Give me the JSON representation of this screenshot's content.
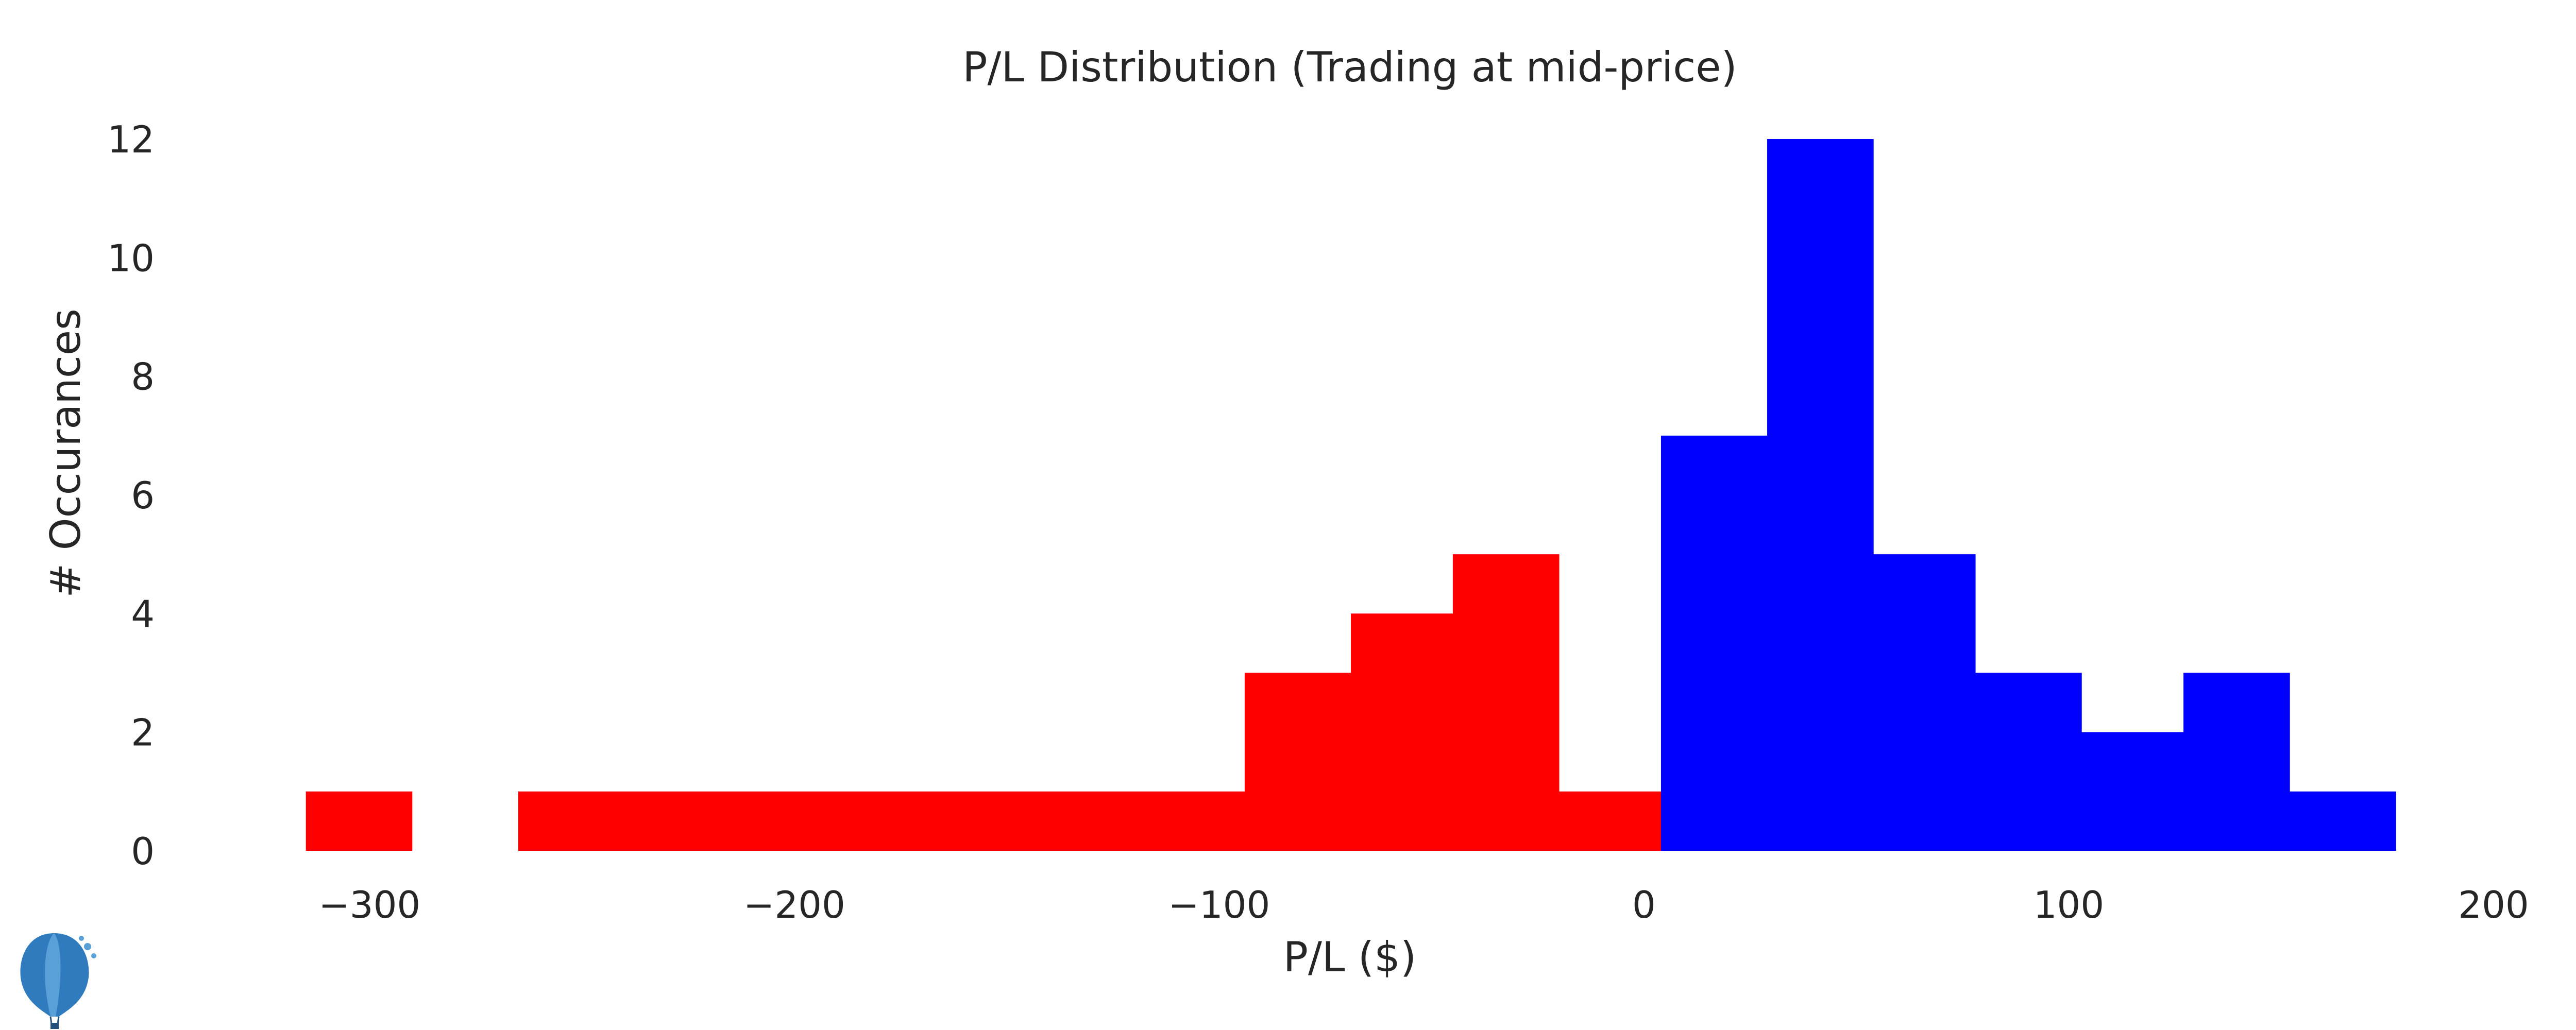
{
  "chart_data": {
    "type": "bar",
    "subtype": "histogram",
    "title": "P/L Distribution (Trading at mid-price)",
    "xlabel": "P/L ($)",
    "ylabel": "# Occurances",
    "xlim": [
      -330,
      200
    ],
    "ylim": [
      0,
      12
    ],
    "grid": false,
    "x_ticks": [
      -300,
      -200,
      -100,
      0,
      100,
      200
    ],
    "x_tick_labels": [
      "−300",
      "−200",
      "−100",
      "0",
      "100",
      "200"
    ],
    "y_ticks": [
      0,
      2,
      4,
      6,
      8,
      10,
      12
    ],
    "y_tick_labels": [
      "0",
      "2",
      "4",
      "6",
      "8",
      "10",
      "12"
    ],
    "colors": {
      "loss": "#ff0000",
      "profit": "#0000ff"
    },
    "series": [
      {
        "color_key": "loss",
        "bins": [
          {
            "x0": -315,
            "x1": -290,
            "count": 1
          },
          {
            "x0": -265,
            "x1": -240,
            "count": 1
          },
          {
            "x0": -240,
            "x1": -216,
            "count": 1
          },
          {
            "x0": -216,
            "x1": -191,
            "count": 1
          },
          {
            "x0": -191,
            "x1": -167,
            "count": 1
          },
          {
            "x0": -167,
            "x1": -142,
            "count": 1
          },
          {
            "x0": -142,
            "x1": -118,
            "count": 1
          },
          {
            "x0": -118,
            "x1": -94,
            "count": 1
          },
          {
            "x0": -94,
            "x1": -69,
            "count": 3
          },
          {
            "x0": -69,
            "x1": -45,
            "count": 4
          },
          {
            "x0": -45,
            "x1": -20,
            "count": 5
          },
          {
            "x0": -20,
            "x1": 4,
            "count": 1
          }
        ]
      },
      {
        "color_key": "profit",
        "bins": [
          {
            "x0": 4,
            "x1": 29,
            "count": 7
          },
          {
            "x0": 29,
            "x1": 54,
            "count": 12
          },
          {
            "x0": 54,
            "x1": 78,
            "count": 5
          },
          {
            "x0": 78,
            "x1": 103,
            "count": 3
          },
          {
            "x0": 103,
            "x1": 127,
            "count": 2
          },
          {
            "x0": 127,
            "x1": 152,
            "count": 3
          },
          {
            "x0": 152,
            "x1": 177,
            "count": 1
          }
        ]
      }
    ]
  },
  "logo": {
    "icon": "hot-air-balloon-icon",
    "colors": {
      "light": "#5aa0d8",
      "mid": "#2f7bbd",
      "dark": "#1f4f7a"
    }
  }
}
